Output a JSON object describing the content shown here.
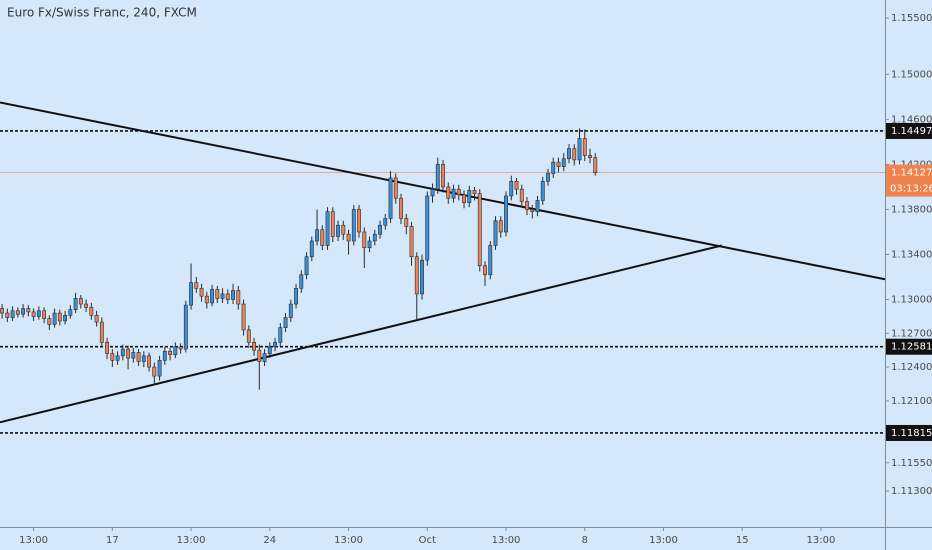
{
  "chart_data": {
    "type": "candlestick",
    "title": "Euro Fx/Swiss Franc, 240, FXCM",
    "up_color": "#3b8fd6",
    "down_color": "#e8835a",
    "wick_color": "#2b2b2b",
    "xlim": [
      -0.4,
      168.2
    ],
    "xticks": [
      {
        "value": 6,
        "label": "13:00"
      },
      {
        "value": 21,
        "label": "17"
      },
      {
        "value": 36,
        "label": "13:00"
      },
      {
        "value": 51,
        "label": "24"
      },
      {
        "value": 66,
        "label": "13:00"
      },
      {
        "value": 81,
        "label": "Oct"
      },
      {
        "value": 96,
        "label": "13:00"
      },
      {
        "value": 111,
        "label": "8"
      },
      {
        "value": 126,
        "label": "13:00"
      },
      {
        "value": 141,
        "label": "15"
      },
      {
        "value": 156,
        "label": "13:00"
      }
    ],
    "ylim": [
      1.1098,
      1.1566
    ],
    "yticks": [
      {
        "value": 1.155,
        "label": "1.15500"
      },
      {
        "value": 1.15,
        "label": "1.15000"
      },
      {
        "value": 1.146,
        "label": "1.14600"
      },
      {
        "value": 1.142,
        "label": "1.14200"
      },
      {
        "value": 1.138,
        "label": "1.13800"
      },
      {
        "value": 1.134,
        "label": "1.13400"
      },
      {
        "value": 1.13,
        "label": "1.13000"
      },
      {
        "value": 1.127,
        "label": "1.12700"
      },
      {
        "value": 1.124,
        "label": "1.12400"
      },
      {
        "value": 1.121,
        "label": "1.12100"
      },
      {
        "value": 1.1155,
        "label": "1.11550"
      },
      {
        "value": 1.113,
        "label": "1.11300"
      }
    ],
    "levels": [
      1.14497,
      1.12581,
      1.11815
    ],
    "last_price": {
      "value": 1.14127,
      "countdown": "03:13:26",
      "color": "#f0824c"
    },
    "trendlines": [
      {
        "x": [
          -0.4,
          168.2
        ],
        "y": [
          1.1475,
          1.1318
        ]
      },
      {
        "x": [
          -0.4,
          137.1
        ],
        "y": [
          1.1191,
          1.1348
        ]
      }
    ],
    "ohlc": [
      [
        1.1292,
        1.1296,
        1.1283,
        1.1288
      ],
      [
        1.1288,
        1.1292,
        1.128,
        1.1284
      ],
      [
        1.1284,
        1.1294,
        1.1281,
        1.129
      ],
      [
        1.129,
        1.1293,
        1.1284,
        1.1287
      ],
      [
        1.1287,
        1.1296,
        1.1284,
        1.1292
      ],
      [
        1.1292,
        1.1295,
        1.1285,
        1.1289
      ],
      [
        1.1289,
        1.1292,
        1.1281,
        1.1285
      ],
      [
        1.1285,
        1.1294,
        1.1282,
        1.129
      ],
      [
        1.129,
        1.1293,
        1.1279,
        1.1283
      ],
      [
        1.1283,
        1.1286,
        1.1273,
        1.1278
      ],
      [
        1.1278,
        1.1292,
        1.1275,
        1.1288
      ],
      [
        1.1288,
        1.1291,
        1.1277,
        1.1281
      ],
      [
        1.1281,
        1.129,
        1.1278,
        1.1286
      ],
      [
        1.1286,
        1.1295,
        1.1283,
        1.1291
      ],
      [
        1.1291,
        1.1306,
        1.1288,
        1.1301
      ],
      [
        1.1301,
        1.1304,
        1.1292,
        1.1296
      ],
      [
        1.1296,
        1.13,
        1.1289,
        1.1293
      ],
      [
        1.1293,
        1.1297,
        1.1282,
        1.1286
      ],
      [
        1.1286,
        1.129,
        1.1276,
        1.128
      ],
      [
        1.128,
        1.1284,
        1.1258,
        1.1262
      ],
      [
        1.1262,
        1.1266,
        1.1247,
        1.1252
      ],
      [
        1.1252,
        1.1256,
        1.124,
        1.1246
      ],
      [
        1.1246,
        1.1254,
        1.1242,
        1.125
      ],
      [
        1.125,
        1.126,
        1.1246,
        1.1256
      ],
      [
        1.1256,
        1.1259,
        1.1238,
        1.1248
      ],
      [
        1.1248,
        1.1257,
        1.1244,
        1.1253
      ],
      [
        1.1253,
        1.1256,
        1.1241,
        1.1245
      ],
      [
        1.1245,
        1.1254,
        1.124,
        1.125
      ],
      [
        1.125,
        1.1253,
        1.1236,
        1.124
      ],
      [
        1.124,
        1.1244,
        1.1224,
        1.1232
      ],
      [
        1.1232,
        1.125,
        1.1228,
        1.1246
      ],
      [
        1.1246,
        1.1258,
        1.1242,
        1.1254
      ],
      [
        1.1254,
        1.1257,
        1.1246,
        1.1251
      ],
      [
        1.1251,
        1.1262,
        1.1248,
        1.1258
      ],
      [
        1.1258,
        1.1261,
        1.1252,
        1.1256
      ],
      [
        1.1256,
        1.1299,
        1.1253,
        1.1295
      ],
      [
        1.1295,
        1.1332,
        1.1291,
        1.1315
      ],
      [
        1.1315,
        1.132,
        1.1306,
        1.131
      ],
      [
        1.131,
        1.1314,
        1.1298,
        1.1303
      ],
      [
        1.1303,
        1.1307,
        1.1292,
        1.1297
      ],
      [
        1.1297,
        1.1313,
        1.1294,
        1.1309
      ],
      [
        1.1309,
        1.1312,
        1.1297,
        1.1301
      ],
      [
        1.1301,
        1.131,
        1.1297,
        1.1305
      ],
      [
        1.1305,
        1.1309,
        1.1296,
        1.13
      ],
      [
        1.13,
        1.1314,
        1.1296,
        1.1308
      ],
      [
        1.1308,
        1.1312,
        1.1291,
        1.1296
      ],
      [
        1.1296,
        1.13,
        1.1268,
        1.1273
      ],
      [
        1.1273,
        1.1277,
        1.1257,
        1.1262
      ],
      [
        1.1262,
        1.1266,
        1.125,
        1.1255
      ],
      [
        1.1255,
        1.126,
        1.122,
        1.1245
      ],
      [
        1.1245,
        1.1256,
        1.1241,
        1.1252
      ],
      [
        1.1252,
        1.1262,
        1.1248,
        1.1258
      ],
      [
        1.1258,
        1.1266,
        1.1254,
        1.1262
      ],
      [
        1.1262,
        1.1279,
        1.1258,
        1.1275
      ],
      [
        1.1275,
        1.1288,
        1.1271,
        1.1284
      ],
      [
        1.1284,
        1.13,
        1.128,
        1.1296
      ],
      [
        1.1296,
        1.1314,
        1.1292,
        1.131
      ],
      [
        1.131,
        1.1326,
        1.1306,
        1.1322
      ],
      [
        1.1322,
        1.1342,
        1.1318,
        1.1338
      ],
      [
        1.1338,
        1.1356,
        1.1334,
        1.1352
      ],
      [
        1.1352,
        1.138,
        1.1348,
        1.1362
      ],
      [
        1.1362,
        1.1366,
        1.1344,
        1.1348
      ],
      [
        1.1348,
        1.1382,
        1.1344,
        1.1378
      ],
      [
        1.1378,
        1.1382,
        1.1351,
        1.1356
      ],
      [
        1.1356,
        1.137,
        1.1352,
        1.1366
      ],
      [
        1.1366,
        1.137,
        1.1353,
        1.1358
      ],
      [
        1.1358,
        1.1362,
        1.134,
        1.1352
      ],
      [
        1.1352,
        1.1384,
        1.1348,
        1.138
      ],
      [
        1.138,
        1.1384,
        1.1355,
        1.136
      ],
      [
        1.136,
        1.1364,
        1.1328,
        1.1346
      ],
      [
        1.1346,
        1.1356,
        1.1342,
        1.1352
      ],
      [
        1.1352,
        1.1362,
        1.1348,
        1.1358
      ],
      [
        1.1358,
        1.137,
        1.1354,
        1.1366
      ],
      [
        1.1366,
        1.1376,
        1.1362,
        1.1372
      ],
      [
        1.1372,
        1.1414,
        1.1368,
        1.1408
      ],
      [
        1.1408,
        1.1412,
        1.1385,
        1.139
      ],
      [
        1.139,
        1.1394,
        1.1367,
        1.1372
      ],
      [
        1.1372,
        1.1376,
        1.1358,
        1.1365
      ],
      [
        1.1365,
        1.1369,
        1.133,
        1.1338
      ],
      [
        1.1338,
        1.1342,
        1.1282,
        1.1305
      ],
      [
        1.1305,
        1.134,
        1.13,
        1.1335
      ],
      [
        1.1335,
        1.1396,
        1.133,
        1.1392
      ],
      [
        1.1392,
        1.1403,
        1.1386,
        1.1398
      ],
      [
        1.1398,
        1.1426,
        1.1394,
        1.142
      ],
      [
        1.142,
        1.1424,
        1.1395,
        1.14
      ],
      [
        1.14,
        1.1404,
        1.1385,
        1.139
      ],
      [
        1.139,
        1.1402,
        1.1386,
        1.1398
      ],
      [
        1.1398,
        1.1402,
        1.1388,
        1.1393
      ],
      [
        1.1393,
        1.1397,
        1.1381,
        1.1386
      ],
      [
        1.1386,
        1.1401,
        1.1382,
        1.1397
      ],
      [
        1.1397,
        1.14,
        1.1388,
        1.1394
      ],
      [
        1.1394,
        1.1398,
        1.1325,
        1.133
      ],
      [
        1.133,
        1.1334,
        1.1312,
        1.1322
      ],
      [
        1.1322,
        1.1352,
        1.1318,
        1.1348
      ],
      [
        1.1348,
        1.1374,
        1.1344,
        1.137
      ],
      [
        1.137,
        1.1374,
        1.1355,
        1.136
      ],
      [
        1.136,
        1.1396,
        1.1356,
        1.1392
      ],
      [
        1.1392,
        1.141,
        1.1388,
        1.1405
      ],
      [
        1.1405,
        1.1408,
        1.1393,
        1.1398
      ],
      [
        1.1398,
        1.1402,
        1.1382,
        1.1387
      ],
      [
        1.1387,
        1.1391,
        1.1375,
        1.138
      ],
      [
        1.138,
        1.1384,
        1.1372,
        1.1378
      ],
      [
        1.1378,
        1.1392,
        1.1374,
        1.1388
      ],
      [
        1.1388,
        1.1409,
        1.1384,
        1.1405
      ],
      [
        1.1405,
        1.1416,
        1.1401,
        1.1412
      ],
      [
        1.1412,
        1.1426,
        1.1408,
        1.1422
      ],
      [
        1.1422,
        1.1426,
        1.1413,
        1.1418
      ],
      [
        1.1418,
        1.143,
        1.1414,
        1.1425
      ],
      [
        1.1425,
        1.1438,
        1.1421,
        1.1434
      ],
      [
        1.1434,
        1.1438,
        1.1419,
        1.1424
      ],
      [
        1.1424,
        1.1452,
        1.142,
        1.1443
      ],
      [
        1.1443,
        1.1451,
        1.1423,
        1.1428
      ],
      [
        1.1428,
        1.1434,
        1.1421,
        1.1426
      ],
      [
        1.1426,
        1.143,
        1.141,
        1.14127
      ]
    ]
  }
}
